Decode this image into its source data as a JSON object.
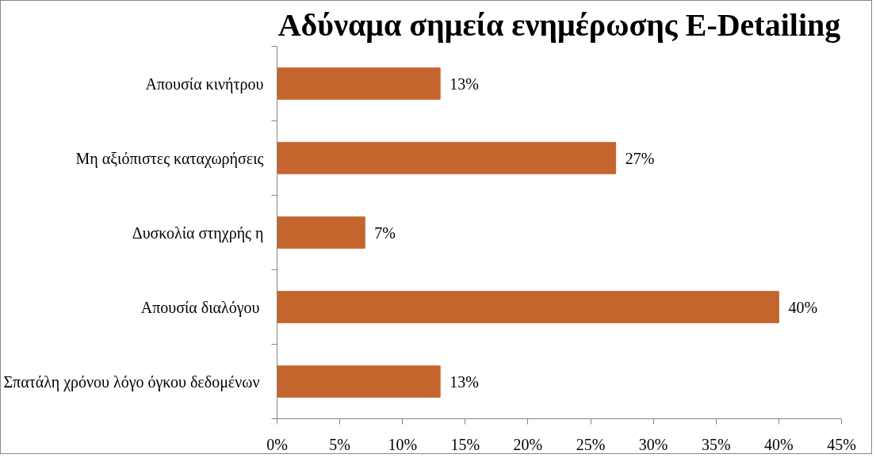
{
  "chart_data": {
    "type": "bar",
    "orientation": "horizontal",
    "title": "Αδύναμα σημεία ενημέρωσης E-Detailing",
    "categories": [
      "Απουσία κινήτρου",
      "Μη αξιόπιστες καταχωρήσεις",
      "Δυσκολία στηχρής η",
      "Απουσία διαλόγου ",
      "Σπατάλη χρόνου λόγο όγκου δεδομένων "
    ],
    "values": [
      13,
      27,
      7,
      40,
      13
    ],
    "value_labels": [
      "13%",
      "27%",
      "7%",
      "40%",
      "13%"
    ],
    "color": "#c4652e",
    "xlim": [
      0,
      45
    ],
    "xticks": [
      {
        "value": 0,
        "label": "0%"
      },
      {
        "value": 5,
        "label": "5%"
      },
      {
        "value": 10,
        "label": "10%"
      },
      {
        "value": 15,
        "label": "15%"
      },
      {
        "value": 20,
        "label": "20%"
      },
      {
        "value": 25,
        "label": "25%"
      },
      {
        "value": 30,
        "label": "30%"
      },
      {
        "value": 35,
        "label": "35%"
      },
      {
        "value": 40,
        "label": "40%"
      },
      {
        "value": 45,
        "label": "45%"
      }
    ],
    "grid": false
  }
}
